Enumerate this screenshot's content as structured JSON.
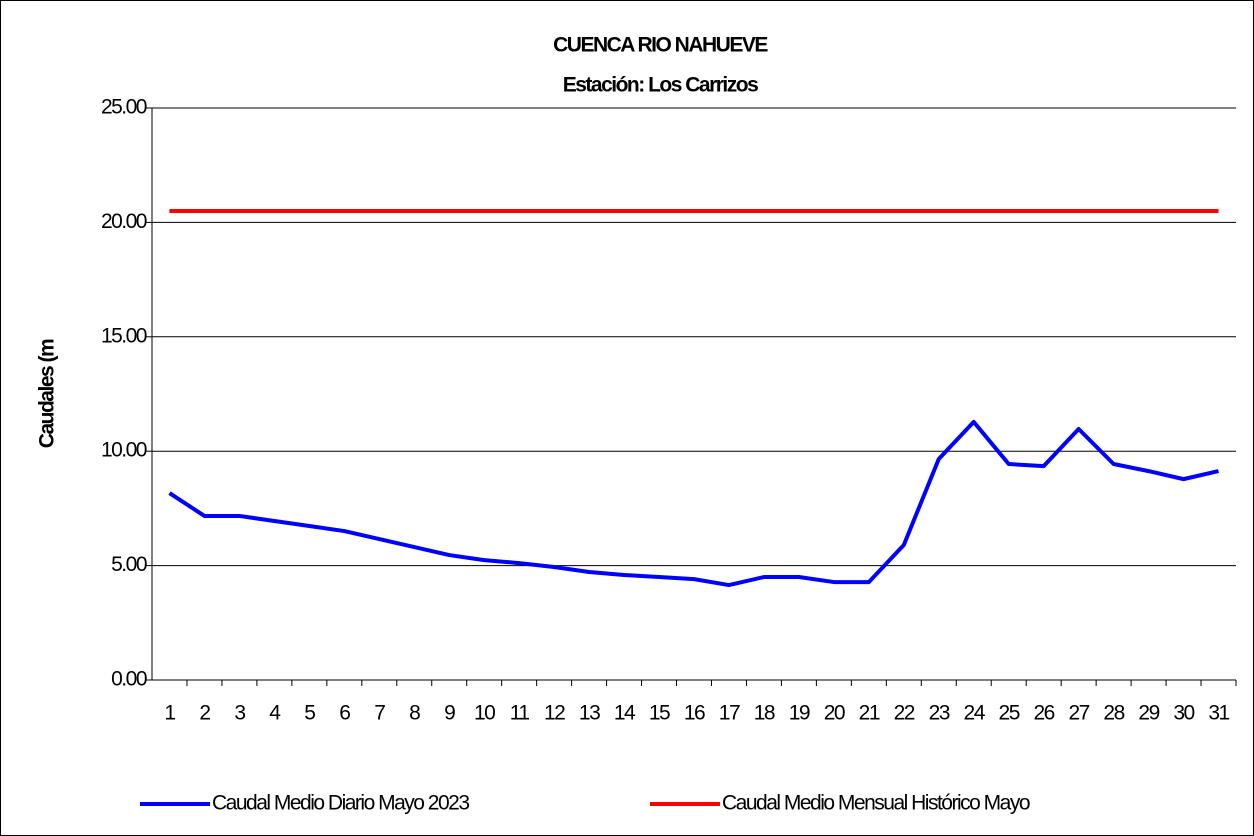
{
  "chart_data": {
    "type": "line",
    "title": [
      "CUENCA RIO NAHUEVE",
      "Estación: Los Carrizos"
    ],
    "y_label": "Caudales (m",
    "categories": [
      "1",
      "2",
      "3",
      "4",
      "5",
      "6",
      "7",
      "8",
      "9",
      "10",
      "11",
      "12",
      "13",
      "14",
      "15",
      "16",
      "17",
      "18",
      "19",
      "20",
      "21",
      "22",
      "23",
      "24",
      "25",
      "26",
      "27",
      "28",
      "29",
      "30",
      "31"
    ],
    "series": [
      {
        "name": "Caudal Medio Diario Mayo 2023",
        "color": "#0000ff",
        "values": [
          8.17,
          7.17,
          7.17,
          6.95,
          6.73,
          6.51,
          6.16,
          5.81,
          5.46,
          5.24,
          5.11,
          4.94,
          4.72,
          4.59,
          4.5,
          4.41,
          4.15,
          4.5,
          4.5,
          4.28,
          4.28,
          5.9,
          9.66,
          11.28,
          9.44,
          9.35,
          10.97,
          9.44,
          9.13,
          8.78,
          9.13
        ]
      },
      {
        "name": "Caudal Medio Mensual Histórico Mayo",
        "color": "#ff0000",
        "values": [
          20.5,
          20.5,
          20.5,
          20.5,
          20.5,
          20.5,
          20.5,
          20.5,
          20.5,
          20.5,
          20.5,
          20.5,
          20.5,
          20.5,
          20.5,
          20.5,
          20.5,
          20.5,
          20.5,
          20.5,
          20.5,
          20.5,
          20.5,
          20.5,
          20.5,
          20.5,
          20.5,
          20.5,
          20.5,
          20.5,
          20.5
        ]
      }
    ],
    "ylim": [
      0,
      25
    ],
    "yticks": [
      {
        "value": 0,
        "label": "0.00"
      },
      {
        "value": 5,
        "label": "5.00"
      },
      {
        "value": 10,
        "label": "10.00"
      },
      {
        "value": 15,
        "label": "15.00"
      },
      {
        "value": 20,
        "label": "20.00"
      },
      {
        "value": 25,
        "label": "25.00"
      }
    ],
    "grid": true,
    "legend": "bottom"
  }
}
